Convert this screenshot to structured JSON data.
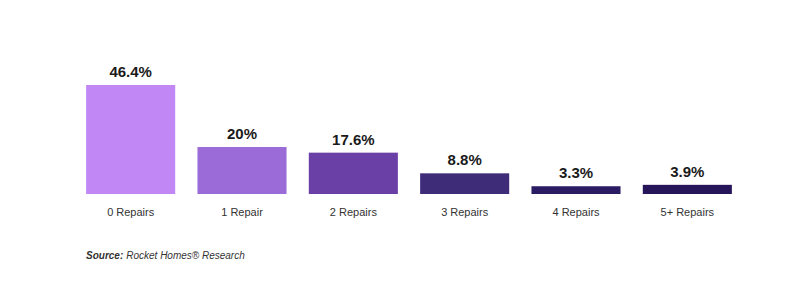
{
  "chart_data": {
    "type": "bar",
    "categories": [
      "0 Repairs",
      "1 Repair",
      "2 Repairs",
      "3 Repairs",
      "4 Repairs",
      "5+ Repairs"
    ],
    "values": [
      46.4,
      20,
      17.6,
      8.8,
      3.3,
      3.9
    ],
    "value_labels": [
      "46.4%",
      "20%",
      "17.6%",
      "8.8%",
      "3.3%",
      "3.9%"
    ],
    "colors": [
      "#c087f5",
      "#9b6bd8",
      "#6a3fa6",
      "#3e2c78",
      "#2b1b63",
      "#261659"
    ],
    "ylim": [
      0,
      46.4
    ],
    "tick_labels": "x",
    "data_labels": true,
    "source": [
      "Source:",
      "Rocket Homes® Research"
    ]
  }
}
